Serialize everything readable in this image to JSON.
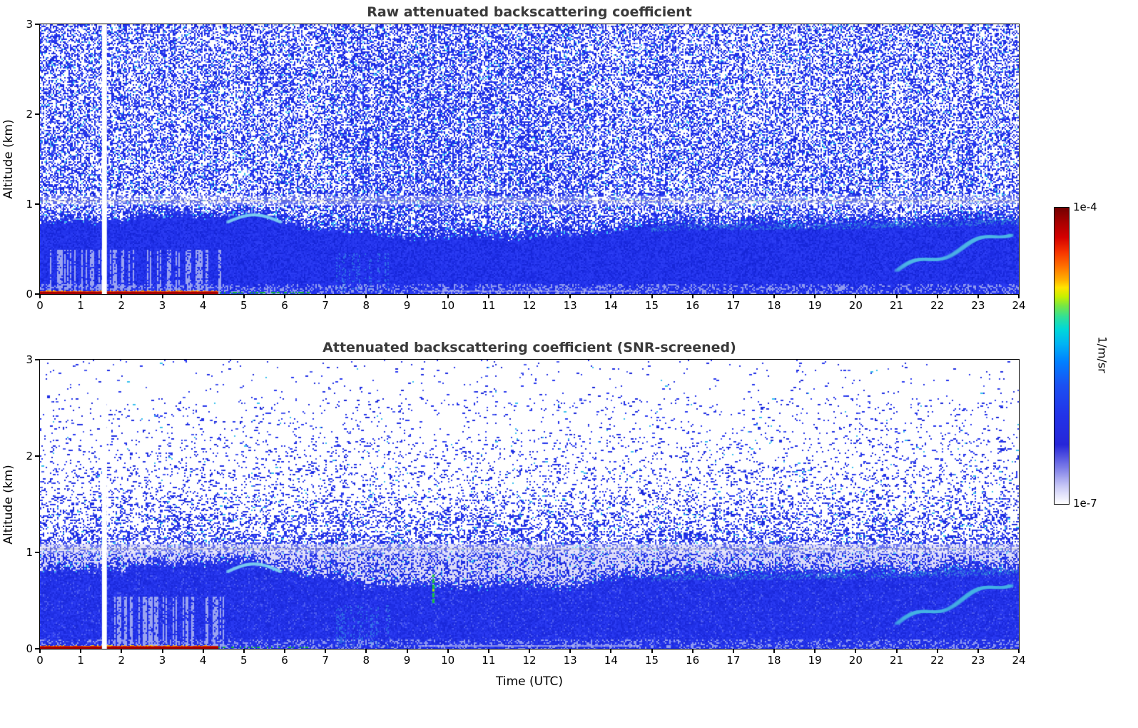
{
  "panels": [
    {
      "key": "raw",
      "title": "Raw attenuated backscattering coefficient",
      "ylabel": "Altitude (km)",
      "x_ticks": [
        0,
        1,
        2,
        3,
        4,
        5,
        6,
        7,
        8,
        9,
        10,
        11,
        12,
        13,
        14,
        15,
        16,
        17,
        18,
        19,
        20,
        21,
        22,
        23,
        24
      ],
      "y_ticks": [
        0,
        1,
        2,
        3
      ]
    },
    {
      "key": "screened",
      "title": "Attenuated backscattering coefficient (SNR-screened)",
      "ylabel": "Altitude (km)",
      "xlabel": "Time (UTC)",
      "x_ticks": [
        0,
        1,
        2,
        3,
        4,
        5,
        6,
        7,
        8,
        9,
        10,
        11,
        12,
        13,
        14,
        15,
        16,
        17,
        18,
        19,
        20,
        21,
        22,
        23,
        24
      ],
      "y_ticks": [
        0,
        1,
        2,
        3
      ]
    }
  ],
  "colorbar": {
    "max_label": "1e-4",
    "min_label": "1e-7",
    "unit": "1/m/sr",
    "stops": [
      [
        0.0,
        "#730000"
      ],
      [
        0.05,
        "#a80000"
      ],
      [
        0.1,
        "#d40000"
      ],
      [
        0.15,
        "#f63400"
      ],
      [
        0.2,
        "#ff7300"
      ],
      [
        0.245,
        "#ffb300"
      ],
      [
        0.27,
        "#ffe400"
      ],
      [
        0.3,
        "#c8f000"
      ],
      [
        0.33,
        "#7ae840"
      ],
      [
        0.37,
        "#2fe09a"
      ],
      [
        0.41,
        "#00d8d8"
      ],
      [
        0.46,
        "#00b4f4"
      ],
      [
        0.52,
        "#0080ff"
      ],
      [
        0.6,
        "#1b50f2"
      ],
      [
        0.7,
        "#2233e8"
      ],
      [
        0.8,
        "#2626d8"
      ],
      [
        0.88,
        "#7f7fe8"
      ],
      [
        0.94,
        "#c8c8f6"
      ],
      [
        1.0,
        "#ffffff"
      ]
    ]
  },
  "chart_data": {
    "type": "heatmap",
    "x": {
      "label": "Time (UTC)",
      "range": [
        0,
        24
      ],
      "ticks": [
        0,
        1,
        2,
        3,
        4,
        5,
        6,
        7,
        8,
        9,
        10,
        11,
        12,
        13,
        14,
        15,
        16,
        17,
        18,
        19,
        20,
        21,
        22,
        23,
        24
      ],
      "units": "hours"
    },
    "y": {
      "label": "Altitude (km)",
      "range": [
        0,
        3
      ],
      "ticks": [
        0,
        1,
        2,
        3
      ]
    },
    "color_scale": {
      "min": 1e-07,
      "max": 0.0001,
      "units": "1/m/sr",
      "scale": "log",
      "min_label": "1e-7",
      "max_label": "1e-4"
    },
    "panels": [
      {
        "title": "Raw attenuated backscattering coefficient",
        "description": "Noisy raw attenuated backscatter: dense blue speckle noise fills the whole 0-3 km column, a solid blue aerosol/boundary layer lies below ~0.6-0.9 km, a strong red/orange surface return appears from 00:00 to ~04:20 UTC, green surface returns from ~04:20 to ~06:30 UTC, a white data gap near 01:30 UTC, a faint horizontal artifact line near 1.05 km, and a cyan plume rising from ~0.3 to ~0.7 km between 21:00 and 24:00 UTC."
      },
      {
        "title": "Attenuated backscattering coefficient (SNR-screened)",
        "description": "Same field after SNR screening: noise above ~1.1 km mostly removed leaving sparse blue speckle that thins with altitude, a pale lavender weak-signal band between ~0.9 and ~1.1 km, the solid blue boundary layer below ~0.9 km, surface returns, data gap, 1.05 km artifact line, a small green echo near 09:40 UTC at 0.5-0.8 km, and the late cyan plume all preserved."
      }
    ],
    "boundary_layer_top_km": [
      [
        0,
        0.78
      ],
      [
        1.5,
        0.8
      ],
      [
        3,
        0.84
      ],
      [
        4.3,
        0.88
      ],
      [
        5.3,
        0.86
      ],
      [
        6.5,
        0.74
      ],
      [
        8,
        0.65
      ],
      [
        10,
        0.62
      ],
      [
        12,
        0.63
      ],
      [
        13.3,
        0.64
      ],
      [
        14.5,
        0.74
      ],
      [
        16,
        0.77
      ],
      [
        18,
        0.77
      ],
      [
        20,
        0.78
      ],
      [
        22,
        0.8
      ],
      [
        24,
        0.83
      ]
    ],
    "data_gap_utc": [
      1.52,
      1.64
    ],
    "surface_return_red_utc": [
      0,
      4.35
    ],
    "surface_return_green_utc": [
      4.35,
      6.6
    ],
    "artifact_line_altitude_km": 1.04,
    "cyan_plume": {
      "t_start": 21.0,
      "t_end": 23.8,
      "alt_start_km": 0.26,
      "alt_end_km": 0.7
    }
  }
}
